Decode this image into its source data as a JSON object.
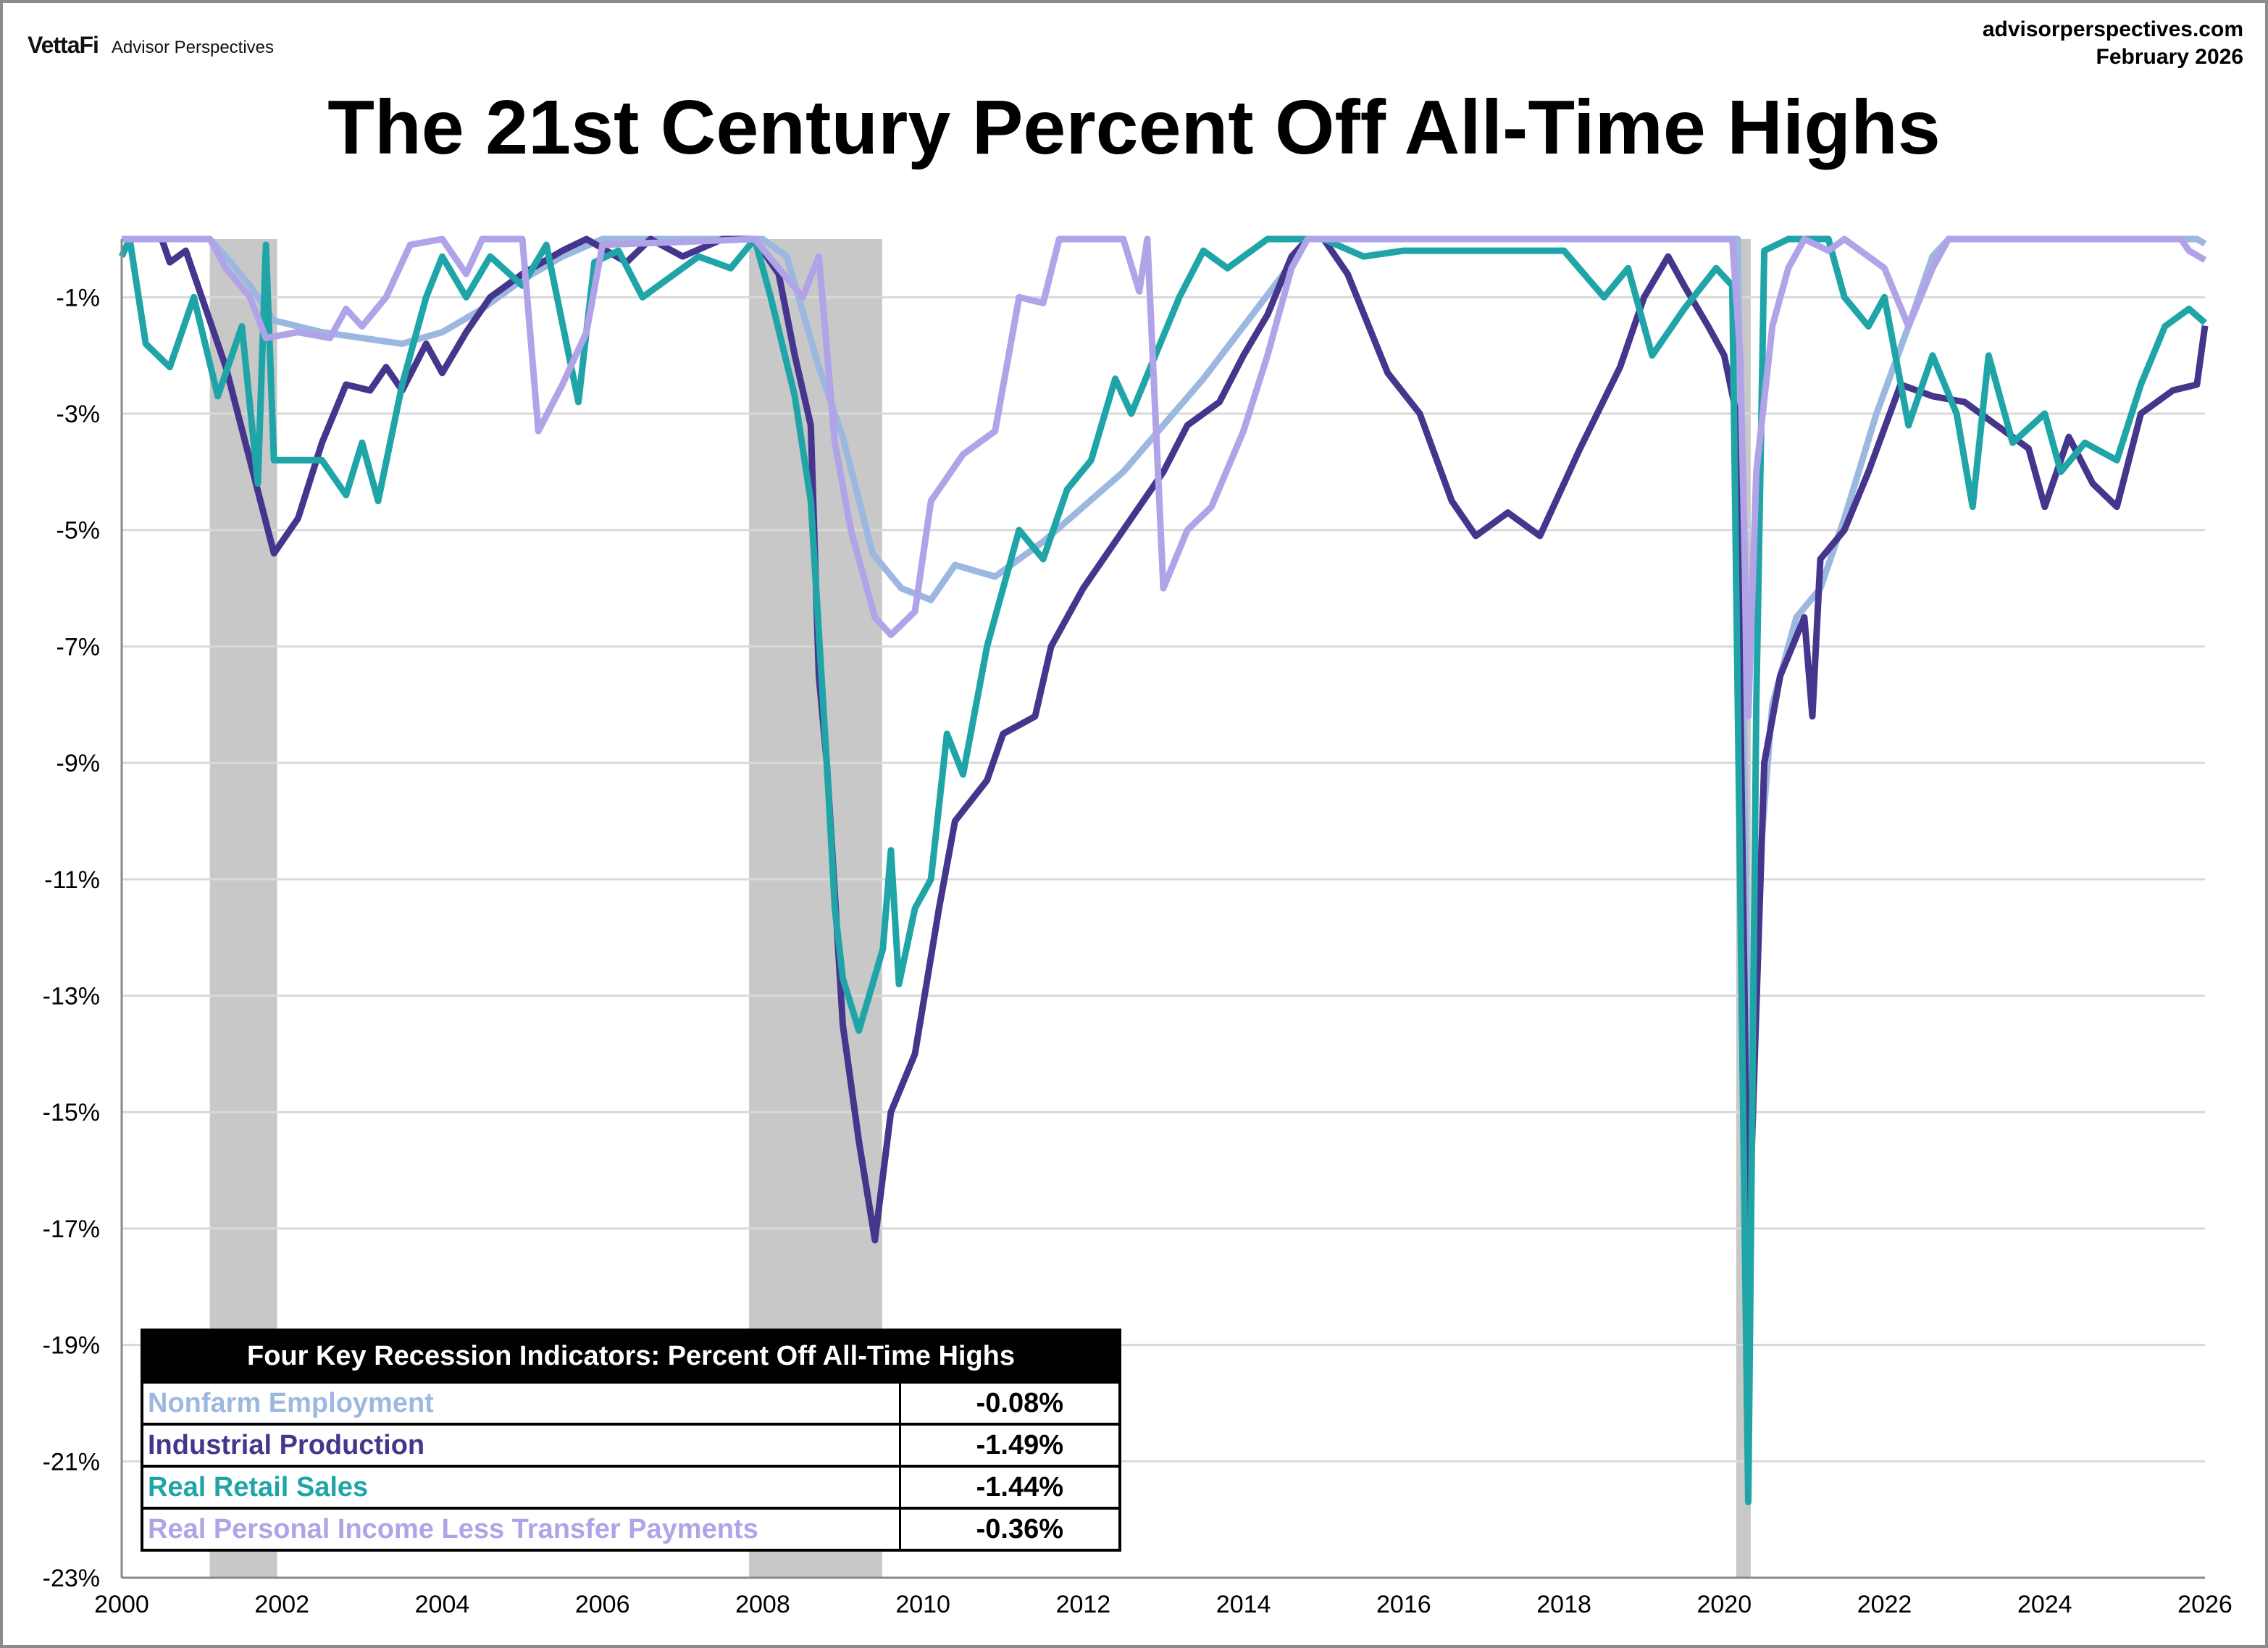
{
  "header": {
    "logo_brand": "VettaFi",
    "logo_sub": "Advisor Perspectives",
    "site": "advisorperspectives.com",
    "date": "February 2026"
  },
  "chart_data": {
    "type": "line",
    "title": "The 21st Century Percent Off All-Time Highs",
    "xlabel": "",
    "ylabel": "",
    "xlim": [
      2000,
      2026
    ],
    "ylim": [
      -23,
      0
    ],
    "x_ticks": [
      "2000",
      "2002",
      "2004",
      "2006",
      "2008",
      "2010",
      "2012",
      "2014",
      "2016",
      "2018",
      "2020",
      "2022",
      "2024",
      "2026"
    ],
    "y_ticks": [
      "-1%",
      "-3%",
      "-5%",
      "-7%",
      "-9%",
      "-11%",
      "-13%",
      "-15%",
      "-17%",
      "-19%",
      "-21%",
      "-23%"
    ],
    "y_tick_values": [
      -1,
      -3,
      -5,
      -7,
      -9,
      -11,
      -13,
      -15,
      -17,
      -19,
      -21,
      -23
    ],
    "grid": "horizontal",
    "recessions": [
      [
        2001.1,
        2001.94
      ],
      [
        2007.83,
        2009.49
      ],
      [
        2020.15,
        2020.33
      ]
    ],
    "recession_color": "#c8c8c8",
    "legend": {
      "title": "Four Key Recession Indicators: Percent Off All-Time Highs",
      "placement": "bottom-left"
    },
    "series": [
      {
        "name": "Nonfarm Employment",
        "color": "#9db8e0",
        "latest": "-0.08%",
        "points": [
          [
            2000,
            0
          ],
          [
            2001.1,
            0
          ],
          [
            2001.3,
            -0.3
          ],
          [
            2001.6,
            -0.8
          ],
          [
            2001.9,
            -1.4
          ],
          [
            2002.5,
            -1.6
          ],
          [
            2003.0,
            -1.7
          ],
          [
            2003.5,
            -1.8
          ],
          [
            2004.0,
            -1.6
          ],
          [
            2004.5,
            -1.2
          ],
          [
            2005.0,
            -0.7
          ],
          [
            2005.5,
            -0.3
          ],
          [
            2006.0,
            0
          ],
          [
            2008.0,
            0
          ],
          [
            2008.3,
            -0.3
          ],
          [
            2008.7,
            -2.2
          ],
          [
            2009.0,
            -3.4
          ],
          [
            2009.37,
            -5.4
          ],
          [
            2009.73,
            -6.0
          ],
          [
            2010.1,
            -6.2
          ],
          [
            2010.4,
            -5.6
          ],
          [
            2010.9,
            -5.8
          ],
          [
            2011.5,
            -5.2
          ],
          [
            2012.0,
            -4.6
          ],
          [
            2012.5,
            -4.0
          ],
          [
            2013.0,
            -3.2
          ],
          [
            2013.5,
            -2.4
          ],
          [
            2014.0,
            -1.5
          ],
          [
            2014.5,
            -0.6
          ],
          [
            2014.8,
            0
          ],
          [
            2020.17,
            0
          ],
          [
            2020.3,
            -14.5
          ],
          [
            2020.4,
            -11.5
          ],
          [
            2020.6,
            -8.0
          ],
          [
            2020.9,
            -6.5
          ],
          [
            2021.2,
            -6.0
          ],
          [
            2021.5,
            -4.8
          ],
          [
            2021.9,
            -3.0
          ],
          [
            2022.3,
            -1.5
          ],
          [
            2022.6,
            -0.3
          ],
          [
            2022.8,
            0
          ],
          [
            2025.9,
            0
          ],
          [
            2026.0,
            -0.08
          ]
        ]
      },
      {
        "name": "Industrial Production",
        "color": "#46358c",
        "latest": "-1.49%",
        "points": [
          [
            2000,
            0
          ],
          [
            2000.5,
            0
          ],
          [
            2000.6,
            -0.4
          ],
          [
            2000.8,
            -0.2
          ],
          [
            2001.0,
            -1.0
          ],
          [
            2001.3,
            -2.2
          ],
          [
            2001.6,
            -3.8
          ],
          [
            2001.9,
            -5.4
          ],
          [
            2002.2,
            -4.8
          ],
          [
            2002.5,
            -3.5
          ],
          [
            2002.8,
            -2.5
          ],
          [
            2003.1,
            -2.6
          ],
          [
            2003.3,
            -2.2
          ],
          [
            2003.5,
            -2.6
          ],
          [
            2003.8,
            -1.8
          ],
          [
            2004.0,
            -2.3
          ],
          [
            2004.3,
            -1.6
          ],
          [
            2004.6,
            -1.0
          ],
          [
            2005.0,
            -0.6
          ],
          [
            2005.5,
            -0.2
          ],
          [
            2005.8,
            0
          ],
          [
            2006.3,
            -0.4
          ],
          [
            2006.6,
            0
          ],
          [
            2007.0,
            -0.3
          ],
          [
            2007.5,
            0
          ],
          [
            2007.9,
            0
          ],
          [
            2008.2,
            -0.6
          ],
          [
            2008.4,
            -2.0
          ],
          [
            2008.6,
            -3.2
          ],
          [
            2008.7,
            -7.5
          ],
          [
            2008.8,
            -9.0
          ],
          [
            2009.0,
            -13.5
          ],
          [
            2009.2,
            -15.5
          ],
          [
            2009.4,
            -17.2
          ],
          [
            2009.6,
            -15.0
          ],
          [
            2009.9,
            -14.0
          ],
          [
            2010.2,
            -11.5
          ],
          [
            2010.4,
            -10.0
          ],
          [
            2010.8,
            -9.3
          ],
          [
            2011.0,
            -8.5
          ],
          [
            2011.4,
            -8.2
          ],
          [
            2011.6,
            -7.0
          ],
          [
            2012.0,
            -6.0
          ],
          [
            2012.4,
            -5.2
          ],
          [
            2012.7,
            -4.6
          ],
          [
            2013.0,
            -4.0
          ],
          [
            2013.3,
            -3.2
          ],
          [
            2013.7,
            -2.8
          ],
          [
            2014.0,
            -2.0
          ],
          [
            2014.3,
            -1.3
          ],
          [
            2014.6,
            -0.3
          ],
          [
            2014.8,
            0
          ],
          [
            2015.0,
            0
          ],
          [
            2015.3,
            -0.6
          ],
          [
            2015.8,
            -2.3
          ],
          [
            2016.2,
            -3.0
          ],
          [
            2016.6,
            -4.5
          ],
          [
            2016.9,
            -5.1
          ],
          [
            2017.3,
            -4.7
          ],
          [
            2017.7,
            -5.1
          ],
          [
            2018.2,
            -3.6
          ],
          [
            2018.7,
            -2.2
          ],
          [
            2019.0,
            -1.0
          ],
          [
            2019.3,
            -0.3
          ],
          [
            2019.5,
            -0.8
          ],
          [
            2019.8,
            -1.5
          ],
          [
            2020.0,
            -2.0
          ],
          [
            2020.15,
            -3.0
          ],
          [
            2020.3,
            -17.5
          ],
          [
            2020.5,
            -9.0
          ],
          [
            2020.7,
            -7.5
          ],
          [
            2021.0,
            -6.5
          ],
          [
            2021.1,
            -8.2
          ],
          [
            2021.2,
            -5.5
          ],
          [
            2021.5,
            -5.0
          ],
          [
            2021.8,
            -4.0
          ],
          [
            2022.2,
            -2.5
          ],
          [
            2022.6,
            -2.7
          ],
          [
            2023.0,
            -2.8
          ],
          [
            2023.4,
            -3.2
          ],
          [
            2023.8,
            -3.6
          ],
          [
            2024.0,
            -4.6
          ],
          [
            2024.3,
            -3.4
          ],
          [
            2024.6,
            -4.2
          ],
          [
            2024.9,
            -4.6
          ],
          [
            2025.2,
            -3.0
          ],
          [
            2025.6,
            -2.6
          ],
          [
            2025.9,
            -2.5
          ],
          [
            2026.0,
            -1.49
          ]
        ]
      },
      {
        "name": "Real Retail Sales",
        "color": "#1fa5a8",
        "latest": "-1.44%",
        "points": [
          [
            2000,
            -0.3
          ],
          [
            2000.1,
            0
          ],
          [
            2000.3,
            -1.8
          ],
          [
            2000.6,
            -2.2
          ],
          [
            2000.9,
            -1.0
          ],
          [
            2001.2,
            -2.7
          ],
          [
            2001.5,
            -1.5
          ],
          [
            2001.7,
            -4.2
          ],
          [
            2001.8,
            -0.1
          ],
          [
            2001.9,
            -3.8
          ],
          [
            2002.2,
            -3.8
          ],
          [
            2002.5,
            -3.8
          ],
          [
            2002.8,
            -4.4
          ],
          [
            2003.0,
            -3.5
          ],
          [
            2003.2,
            -4.5
          ],
          [
            2003.5,
            -2.5
          ],
          [
            2003.8,
            -1.0
          ],
          [
            2004.0,
            -0.3
          ],
          [
            2004.3,
            -1.0
          ],
          [
            2004.6,
            -0.3
          ],
          [
            2005.0,
            -0.8
          ],
          [
            2005.3,
            -0.1
          ],
          [
            2005.7,
            -2.8
          ],
          [
            2005.9,
            -0.4
          ],
          [
            2006.2,
            -0.2
          ],
          [
            2006.5,
            -1.0
          ],
          [
            2006.8,
            -0.7
          ],
          [
            2007.2,
            -0.3
          ],
          [
            2007.6,
            -0.5
          ],
          [
            2007.9,
            0
          ],
          [
            2008.1,
            -1.0
          ],
          [
            2008.4,
            -2.7
          ],
          [
            2008.6,
            -4.5
          ],
          [
            2008.8,
            -9.0
          ],
          [
            2008.9,
            -11.5
          ],
          [
            2009.0,
            -12.7
          ],
          [
            2009.2,
            -13.6
          ],
          [
            2009.5,
            -12.2
          ],
          [
            2009.6,
            -10.5
          ],
          [
            2009.7,
            -12.8
          ],
          [
            2009.9,
            -11.5
          ],
          [
            2010.1,
            -11.0
          ],
          [
            2010.3,
            -8.5
          ],
          [
            2010.5,
            -9.2
          ],
          [
            2010.8,
            -7.0
          ],
          [
            2011.2,
            -5.0
          ],
          [
            2011.5,
            -5.5
          ],
          [
            2011.8,
            -4.3
          ],
          [
            2012.1,
            -3.8
          ],
          [
            2012.4,
            -2.4
          ],
          [
            2012.6,
            -3.0
          ],
          [
            2012.9,
            -2.0
          ],
          [
            2013.2,
            -1.0
          ],
          [
            2013.5,
            -0.2
          ],
          [
            2013.8,
            -0.5
          ],
          [
            2014.0,
            -0.3
          ],
          [
            2014.3,
            0
          ],
          [
            2015.0,
            0
          ],
          [
            2015.5,
            -0.3
          ],
          [
            2016.0,
            -0.2
          ],
          [
            2017.0,
            -0.2
          ],
          [
            2018.0,
            -0.2
          ],
          [
            2018.5,
            -1.0
          ],
          [
            2018.8,
            -0.5
          ],
          [
            2019.1,
            -2.0
          ],
          [
            2019.5,
            -1.2
          ],
          [
            2019.9,
            -0.5
          ],
          [
            2020.1,
            -0.8
          ],
          [
            2020.3,
            -21.7
          ],
          [
            2020.4,
            -8.0
          ],
          [
            2020.5,
            -0.2
          ],
          [
            2020.8,
            0
          ],
          [
            2021.3,
            0
          ],
          [
            2021.5,
            -1.0
          ],
          [
            2021.8,
            -1.5
          ],
          [
            2022.0,
            -1.0
          ],
          [
            2022.3,
            -3.2
          ],
          [
            2022.6,
            -2.0
          ],
          [
            2022.9,
            -3.0
          ],
          [
            2023.1,
            -4.6
          ],
          [
            2023.3,
            -2.0
          ],
          [
            2023.6,
            -3.5
          ],
          [
            2024.0,
            -3.0
          ],
          [
            2024.2,
            -4.0
          ],
          [
            2024.5,
            -3.5
          ],
          [
            2024.9,
            -3.8
          ],
          [
            2025.2,
            -2.5
          ],
          [
            2025.5,
            -1.5
          ],
          [
            2025.8,
            -1.2
          ],
          [
            2026.0,
            -1.44
          ]
        ]
      },
      {
        "name": "Real Personal Income Less Transfer Payments",
        "color": "#b0a3e8",
        "latest": "-0.36%",
        "points": [
          [
            2000,
            0
          ],
          [
            2001.1,
            0
          ],
          [
            2001.3,
            -0.5
          ],
          [
            2001.6,
            -1.0
          ],
          [
            2001.8,
            -1.7
          ],
          [
            2002.2,
            -1.6
          ],
          [
            2002.6,
            -1.7
          ],
          [
            2002.8,
            -1.2
          ],
          [
            2003.0,
            -1.5
          ],
          [
            2003.3,
            -1.0
          ],
          [
            2003.6,
            -0.1
          ],
          [
            2004.0,
            0
          ],
          [
            2004.3,
            -0.6
          ],
          [
            2004.5,
            0
          ],
          [
            2005.0,
            0
          ],
          [
            2005.2,
            -3.3
          ],
          [
            2005.5,
            -2.5
          ],
          [
            2005.8,
            -1.6
          ],
          [
            2006.0,
            -0.1
          ],
          [
            2007.9,
            0
          ],
          [
            2008.2,
            -0.5
          ],
          [
            2008.5,
            -1.0
          ],
          [
            2008.7,
            -0.3
          ],
          [
            2008.9,
            -3.5
          ],
          [
            2009.1,
            -5.0
          ],
          [
            2009.4,
            -6.5
          ],
          [
            2009.6,
            -6.8
          ],
          [
            2009.9,
            -6.4
          ],
          [
            2010.1,
            -4.5
          ],
          [
            2010.5,
            -3.7
          ],
          [
            2010.9,
            -3.3
          ],
          [
            2011.2,
            -1.0
          ],
          [
            2011.5,
            -1.1
          ],
          [
            2011.7,
            0
          ],
          [
            2012.5,
            0
          ],
          [
            2012.7,
            -0.9
          ],
          [
            2012.8,
            0
          ],
          [
            2013.0,
            -6.0
          ],
          [
            2013.3,
            -5.0
          ],
          [
            2013.6,
            -4.6
          ],
          [
            2014.0,
            -3.3
          ],
          [
            2014.3,
            -2.0
          ],
          [
            2014.6,
            -0.5
          ],
          [
            2014.8,
            0
          ],
          [
            2020.1,
            0
          ],
          [
            2020.2,
            -2.0
          ],
          [
            2020.3,
            -8.2
          ],
          [
            2020.4,
            -4.0
          ],
          [
            2020.6,
            -1.5
          ],
          [
            2020.8,
            -0.5
          ],
          [
            2021.0,
            0
          ],
          [
            2021.3,
            -0.2
          ],
          [
            2021.5,
            0
          ],
          [
            2022.0,
            -0.5
          ],
          [
            2022.3,
            -1.5
          ],
          [
            2022.6,
            -0.5
          ],
          [
            2022.8,
            0
          ],
          [
            2025.7,
            0
          ],
          [
            2025.8,
            -0.2
          ],
          [
            2026.0,
            -0.36
          ]
        ]
      }
    ]
  }
}
